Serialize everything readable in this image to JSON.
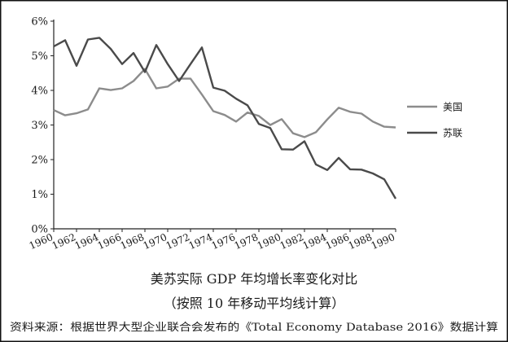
{
  "chart_data": {
    "type": "line",
    "title": "美苏实际 GDP 年均增长率变化对比",
    "subtitle": "（按照 10 年移动平均线计算）",
    "source": "资料来源：根据世界大型企业联合会发布的《Total Economy Database 2016》数据计算",
    "xlabel": "",
    "ylabel": "",
    "xlim": [
      1960,
      1990
    ],
    "ylim": [
      0,
      6
    ],
    "y_ticks": [
      "0%",
      "1%",
      "2%",
      "3%",
      "4%",
      "5%",
      "6%"
    ],
    "x_ticks": [
      "1960",
      "1962",
      "1964",
      "1966",
      "1968",
      "1970",
      "1972",
      "1974",
      "1976",
      "1978",
      "1980",
      "1982",
      "1984",
      "1986",
      "1988",
      "1990"
    ],
    "grid": false,
    "legend_position": "right",
    "series": [
      {
        "name": "美国",
        "color": "#8c8c8c",
        "x": [
          1960,
          1961,
          1962,
          1963,
          1964,
          1965,
          1966,
          1967,
          1968,
          1969,
          1970,
          1971,
          1972,
          1973,
          1974,
          1975,
          1976,
          1977,
          1978,
          1979,
          1980,
          1981,
          1982,
          1983,
          1984,
          1985,
          1986,
          1987,
          1988,
          1989,
          1990
        ],
        "values": [
          3.43,
          3.28,
          3.34,
          3.45,
          4.06,
          4.01,
          4.06,
          4.27,
          4.62,
          4.06,
          4.11,
          4.34,
          4.34,
          3.88,
          3.4,
          3.29,
          3.1,
          3.36,
          3.26,
          3.0,
          3.17,
          2.76,
          2.65,
          2.79,
          3.16,
          3.5,
          3.38,
          3.33,
          3.1,
          2.95,
          2.93
        ]
      },
      {
        "name": "苏联",
        "color": "#4a4a4a",
        "x": [
          1960,
          1961,
          1962,
          1963,
          1964,
          1965,
          1966,
          1967,
          1968,
          1969,
          1970,
          1971,
          1972,
          1973,
          1974,
          1975,
          1976,
          1977,
          1978,
          1979,
          1980,
          1981,
          1982,
          1983,
          1984,
          1985,
          1986,
          1987,
          1988,
          1989,
          1990
        ],
        "values": [
          5.27,
          5.45,
          4.71,
          5.47,
          5.52,
          5.2,
          4.76,
          5.08,
          4.53,
          5.31,
          4.76,
          4.27,
          4.76,
          5.24,
          4.08,
          3.99,
          3.76,
          3.57,
          3.03,
          2.91,
          2.3,
          2.29,
          2.53,
          1.86,
          1.7,
          2.05,
          1.72,
          1.71,
          1.6,
          1.43,
          0.87
        ]
      }
    ]
  }
}
